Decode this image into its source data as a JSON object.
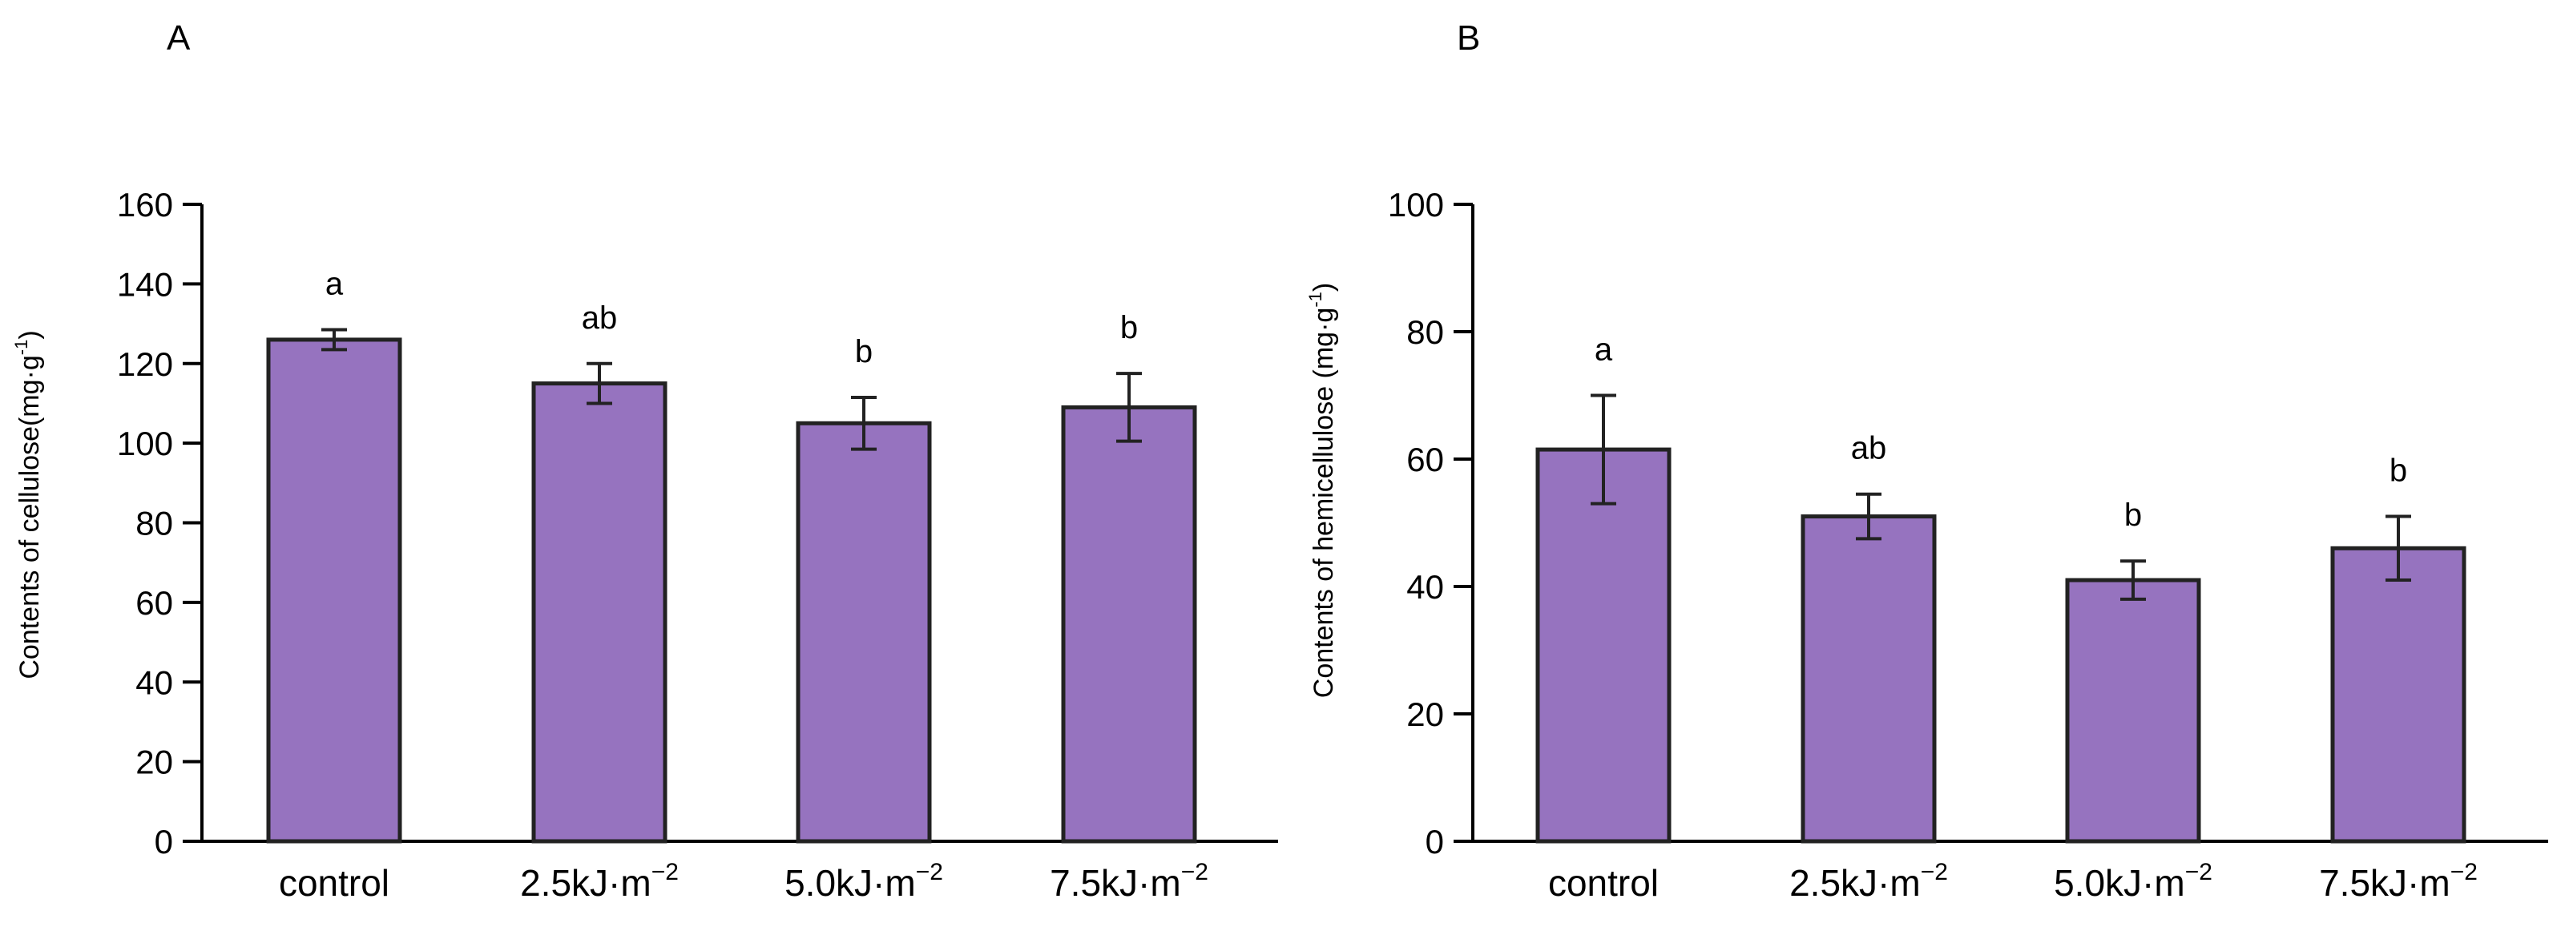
{
  "colors": {
    "bar_fill": "#9673bf",
    "bar_stroke": "#222222",
    "axis": "#000000"
  },
  "chart_data": [
    {
      "type": "bar",
      "panel_label": "A",
      "ylabel_main": "Contents of cellulose",
      "ylabel_unit_base": "(mg·g",
      "ylabel_unit_sup": "-1",
      "ylabel_unit_close": ")",
      "ylim": [
        0,
        160
      ],
      "yticks": [
        0,
        20,
        40,
        60,
        80,
        100,
        120,
        140,
        160
      ],
      "categories": [
        {
          "base": "control",
          "sup": ""
        },
        {
          "base": "2.5kJ·m",
          "sup": "−2"
        },
        {
          "base": "5.0kJ·m",
          "sup": "−2"
        },
        {
          "base": "7.5kJ·m",
          "sup": "−2"
        }
      ],
      "values": [
        126,
        115,
        105,
        109
      ],
      "errors": [
        2.5,
        5,
        6.5,
        8.5
      ],
      "significance": [
        "a",
        "ab",
        "b",
        "b"
      ]
    },
    {
      "type": "bar",
      "panel_label": "B",
      "ylabel_main": "Contents of hemicellulose",
      "ylabel_unit_base": " (mg·g",
      "ylabel_unit_sup": "-1",
      "ylabel_unit_close": ")",
      "ylim": [
        0,
        100
      ],
      "yticks": [
        0,
        20,
        40,
        60,
        80,
        100
      ],
      "categories": [
        {
          "base": "control",
          "sup": ""
        },
        {
          "base": "2.5kJ·m",
          "sup": "−2"
        },
        {
          "base": "5.0kJ·m",
          "sup": "−2"
        },
        {
          "base": "7.5kJ·m",
          "sup": "−2"
        }
      ],
      "values": [
        61.5,
        51,
        41,
        46
      ],
      "errors": [
        8.5,
        3.5,
        3,
        5
      ],
      "significance": [
        "a",
        "ab",
        "b",
        "b"
      ]
    }
  ]
}
